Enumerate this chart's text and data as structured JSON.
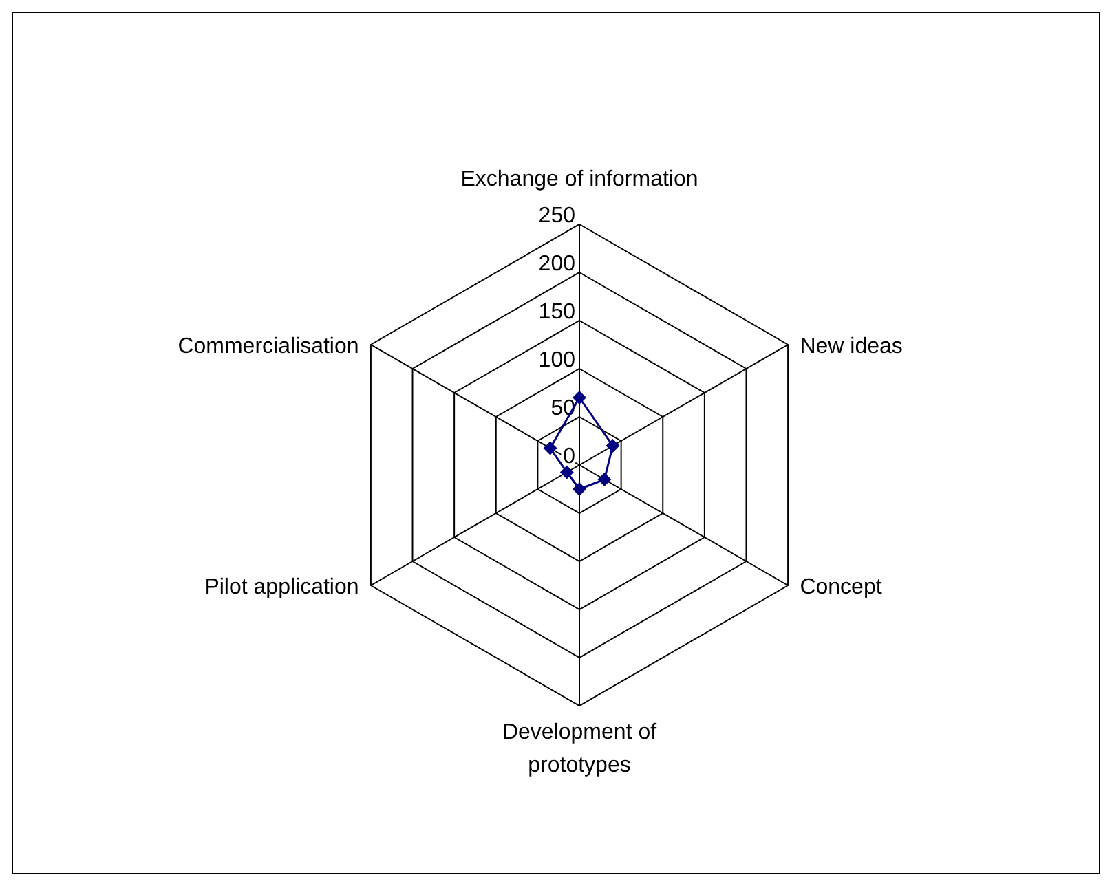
{
  "chart_data": {
    "type": "radar",
    "categories": [
      "Exchange of information",
      "New ideas",
      "Concept",
      "Development of prototypes",
      "Pilot application",
      "Commercialisation"
    ],
    "series": [
      {
        "color": "#000080",
        "values": [
          70,
          40,
          30,
          25,
          15,
          35
        ]
      }
    ],
    "ylim": [
      0,
      250
    ],
    "yticks": [
      0,
      50,
      100,
      150,
      200,
      250
    ],
    "grid": true,
    "marker": "diamond",
    "line_style": "solid"
  }
}
